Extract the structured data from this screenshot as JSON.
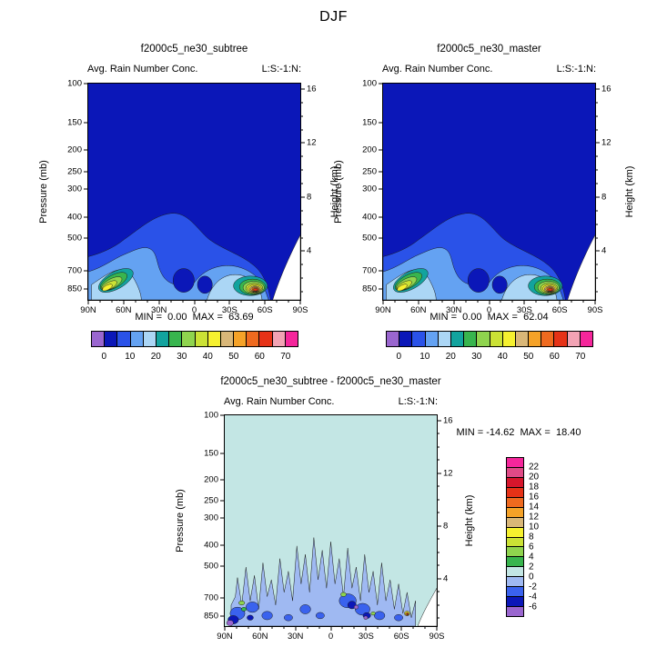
{
  "page_title": "DJF",
  "panels": {
    "subtree": {
      "title": "f2000c5_ne30_subtree",
      "subtitle_left": "Avg. Rain Number Conc.",
      "subtitle_right": "L:S:-1:N:",
      "stats": "MIN =  0.00  MAX =  63.69"
    },
    "master": {
      "title": "f2000c5_ne30_master",
      "subtitle_left": "Avg. Rain Number Conc.",
      "subtitle_right": "L:S:-1:N:",
      "stats": "MIN =  0.00  MAX =  62.04"
    },
    "diff": {
      "title": "f2000c5_ne30_subtree - f2000c5_ne30_master",
      "subtitle_left": "Avg. Rain Number Conc.",
      "subtitle_right": "L:S:-1:N:",
      "stats": "MIN = -14.62  MAX =  18.40"
    }
  },
  "axes": {
    "pressure_label": "Pressure (mb)",
    "height_label": "Height (km)",
    "pressure_ticks": [
      100,
      150,
      200,
      250,
      300,
      400,
      500,
      700,
      850
    ],
    "height_ticks": [
      16,
      12,
      8,
      4
    ],
    "lat_ticks": [
      "90N",
      "60N",
      "30N",
      "0",
      "30S",
      "60S",
      "90S"
    ]
  },
  "colorbar_top": {
    "labels": [
      "0",
      "10",
      "20",
      "30",
      "40",
      "50",
      "60",
      "70"
    ],
    "colors": [
      "#9a66cf",
      "#0b17b8",
      "#2a52e8",
      "#64a2f2",
      "#abd6f5",
      "#12a39e",
      "#38b54e",
      "#8fd44e",
      "#cbe235",
      "#f6f12f",
      "#d9b778",
      "#f5a228",
      "#ef6a1f",
      "#e63217",
      "#f2a3b4",
      "#f5269b"
    ]
  },
  "colorbar_diff": {
    "labels": [
      "22",
      "20",
      "18",
      "16",
      "14",
      "12",
      "10",
      "8",
      "6",
      "4",
      "2",
      "0",
      "-2",
      "-4",
      "-6"
    ],
    "colors": [
      "#f5269b",
      "#e04a86",
      "#d6162c",
      "#e63217",
      "#ef6a1f",
      "#f5a228",
      "#d9b778",
      "#f6f12f",
      "#cbe235",
      "#8fd44e",
      "#38b54e",
      "#c3e6e4",
      "#9fb9f2",
      "#3a62ee",
      "#0b17b8",
      "#9a66cf"
    ]
  },
  "chart_data": [
    {
      "type": "heatmap",
      "variant": "filled_contour",
      "panel": "f2000c5_ne30_subtree",
      "title": "Avg. Rain Number Conc.",
      "season": "DJF",
      "right_header": "L:S:-1:N:",
      "x": {
        "label": "latitude",
        "ticks": [
          "90N",
          "60N",
          "30N",
          "0",
          "30S",
          "60S",
          "90S"
        ]
      },
      "y_left": {
        "label": "Pressure (mb)",
        "scale": "log",
        "inverted": true,
        "ticks": [
          100,
          150,
          200,
          250,
          300,
          400,
          500,
          700,
          850
        ]
      },
      "y_right": {
        "label": "Height (km)",
        "ticks": [
          16,
          12,
          8,
          4
        ]
      },
      "stats": {
        "min": 0.0,
        "max": 63.69
      },
      "contour_levels": [
        0,
        5,
        10,
        15,
        20,
        25,
        30,
        35,
        40,
        45,
        50,
        55,
        60,
        65,
        70
      ],
      "colorbar_tick_labels": [
        0,
        10,
        20,
        30,
        40,
        50,
        60,
        70
      ],
      "features": [
        "values ~0-5 (dark blue) over most of the domain above ~450 mb",
        "dome of 5-20 values below ~450 mb spanning roughly 70N-60S",
        "secondary maximum ~40-45 (yellow-green streak) near 55-65N at 750-850 mb",
        "primary maximum 63.69 (red core) near 50-60S at ~850 mb",
        "white no-data wedge near the South Pole below ~700 mb"
      ]
    },
    {
      "type": "heatmap",
      "variant": "filled_contour",
      "panel": "f2000c5_ne30_master",
      "title": "Avg. Rain Number Conc.",
      "season": "DJF",
      "right_header": "L:S:-1:N:",
      "x": {
        "label": "latitude",
        "ticks": [
          "90N",
          "60N",
          "30N",
          "0",
          "30S",
          "60S",
          "90S"
        ]
      },
      "y_left": {
        "label": "Pressure (mb)",
        "scale": "log",
        "inverted": true,
        "ticks": [
          100,
          150,
          200,
          250,
          300,
          400,
          500,
          700,
          850
        ]
      },
      "y_right": {
        "label": "Height (km)",
        "ticks": [
          16,
          12,
          8,
          4
        ]
      },
      "stats": {
        "min": 0.0,
        "max": 62.04
      },
      "contour_levels": [
        0,
        5,
        10,
        15,
        20,
        25,
        30,
        35,
        40,
        45,
        50,
        55,
        60,
        65,
        70
      ],
      "colorbar_tick_labels": [
        0,
        10,
        20,
        30,
        40,
        50,
        60,
        70
      ],
      "features": [
        "nearly identical structure to the subtree panel",
        "primary maximum 62.04 near 50-60S at ~850 mb"
      ]
    },
    {
      "type": "heatmap",
      "variant": "filled_contour_difference",
      "panel": "f2000c5_ne30_subtree - f2000c5_ne30_master",
      "title": "Avg. Rain Number Conc.",
      "season": "DJF",
      "right_header": "L:S:-1:N:",
      "x": {
        "label": "latitude",
        "ticks": [
          "90N",
          "60N",
          "30N",
          "0",
          "30S",
          "60S",
          "90S"
        ]
      },
      "y_left": {
        "label": "Pressure (mb)",
        "scale": "log",
        "inverted": true,
        "ticks": [
          100,
          150,
          200,
          250,
          300,
          400,
          500,
          700,
          850
        ]
      },
      "y_right": {
        "label": "Height (km)",
        "ticks": [
          16,
          12,
          8,
          4
        ]
      },
      "stats": {
        "min": -14.62,
        "max": 18.4
      },
      "contour_levels": [
        -6,
        -4,
        -2,
        0,
        2,
        4,
        6,
        8,
        10,
        12,
        14,
        16,
        18,
        20,
        22
      ],
      "features": [
        "differences near 0 (pale cyan, 0 to 2) over most of the domain",
        "scattered weak negative differences (-2 to -6) below ~450 mb",
        "strongest negatives (< -6, purple specks) near 85-90N and ~40-60S at 700-850 mb",
        "small positive maximum 18.40 (yellow-orange speck) near ~65S at ~850 mb"
      ]
    }
  ]
}
